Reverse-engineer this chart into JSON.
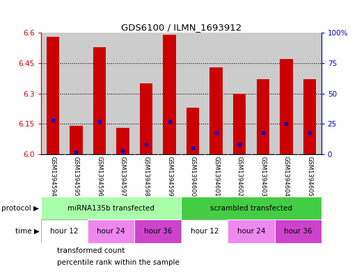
{
  "title": "GDS6100 / ILMN_1693912",
  "samples": [
    "GSM1394594",
    "GSM1394595",
    "GSM1394596",
    "GSM1394597",
    "GSM1394598",
    "GSM1394599",
    "GSM1394600",
    "GSM1394601",
    "GSM1394602",
    "GSM1394603",
    "GSM1394604",
    "GSM1394605"
  ],
  "red_values": [
    6.58,
    6.14,
    6.53,
    6.13,
    6.35,
    6.59,
    6.23,
    6.43,
    6.3,
    6.37,
    6.47,
    6.37
  ],
  "blue_values_pct": [
    28,
    2,
    27,
    3,
    8,
    27,
    5,
    18,
    8,
    18,
    25,
    18
  ],
  "ylim": [
    6.0,
    6.6
  ],
  "yticks_left": [
    6.0,
    6.15,
    6.3,
    6.45,
    6.6
  ],
  "yticks_right": [
    0,
    25,
    50,
    75,
    100
  ],
  "bar_width": 0.55,
  "red_color": "#cc0000",
  "blue_color": "#0000cc",
  "sample_bg_color": "#cccccc",
  "plot_bg_color": "#ffffff",
  "protocol_groups": [
    {
      "label": "miRNA135b transfected",
      "start": 0,
      "end": 6,
      "color": "#aaffaa"
    },
    {
      "label": "scrambled transfected",
      "start": 6,
      "end": 12,
      "color": "#44cc44"
    }
  ],
  "time_groups": [
    {
      "label": "hour 12",
      "start": 0,
      "end": 2,
      "color": "#ffffff"
    },
    {
      "label": "hour 24",
      "start": 2,
      "end": 4,
      "color": "#ee88ee"
    },
    {
      "label": "hour 36",
      "start": 4,
      "end": 6,
      "color": "#cc44cc"
    },
    {
      "label": "hour 12",
      "start": 6,
      "end": 8,
      "color": "#ffffff"
    },
    {
      "label": "hour 24",
      "start": 8,
      "end": 10,
      "color": "#ee88ee"
    },
    {
      "label": "hour 36",
      "start": 10,
      "end": 12,
      "color": "#cc44cc"
    }
  ]
}
